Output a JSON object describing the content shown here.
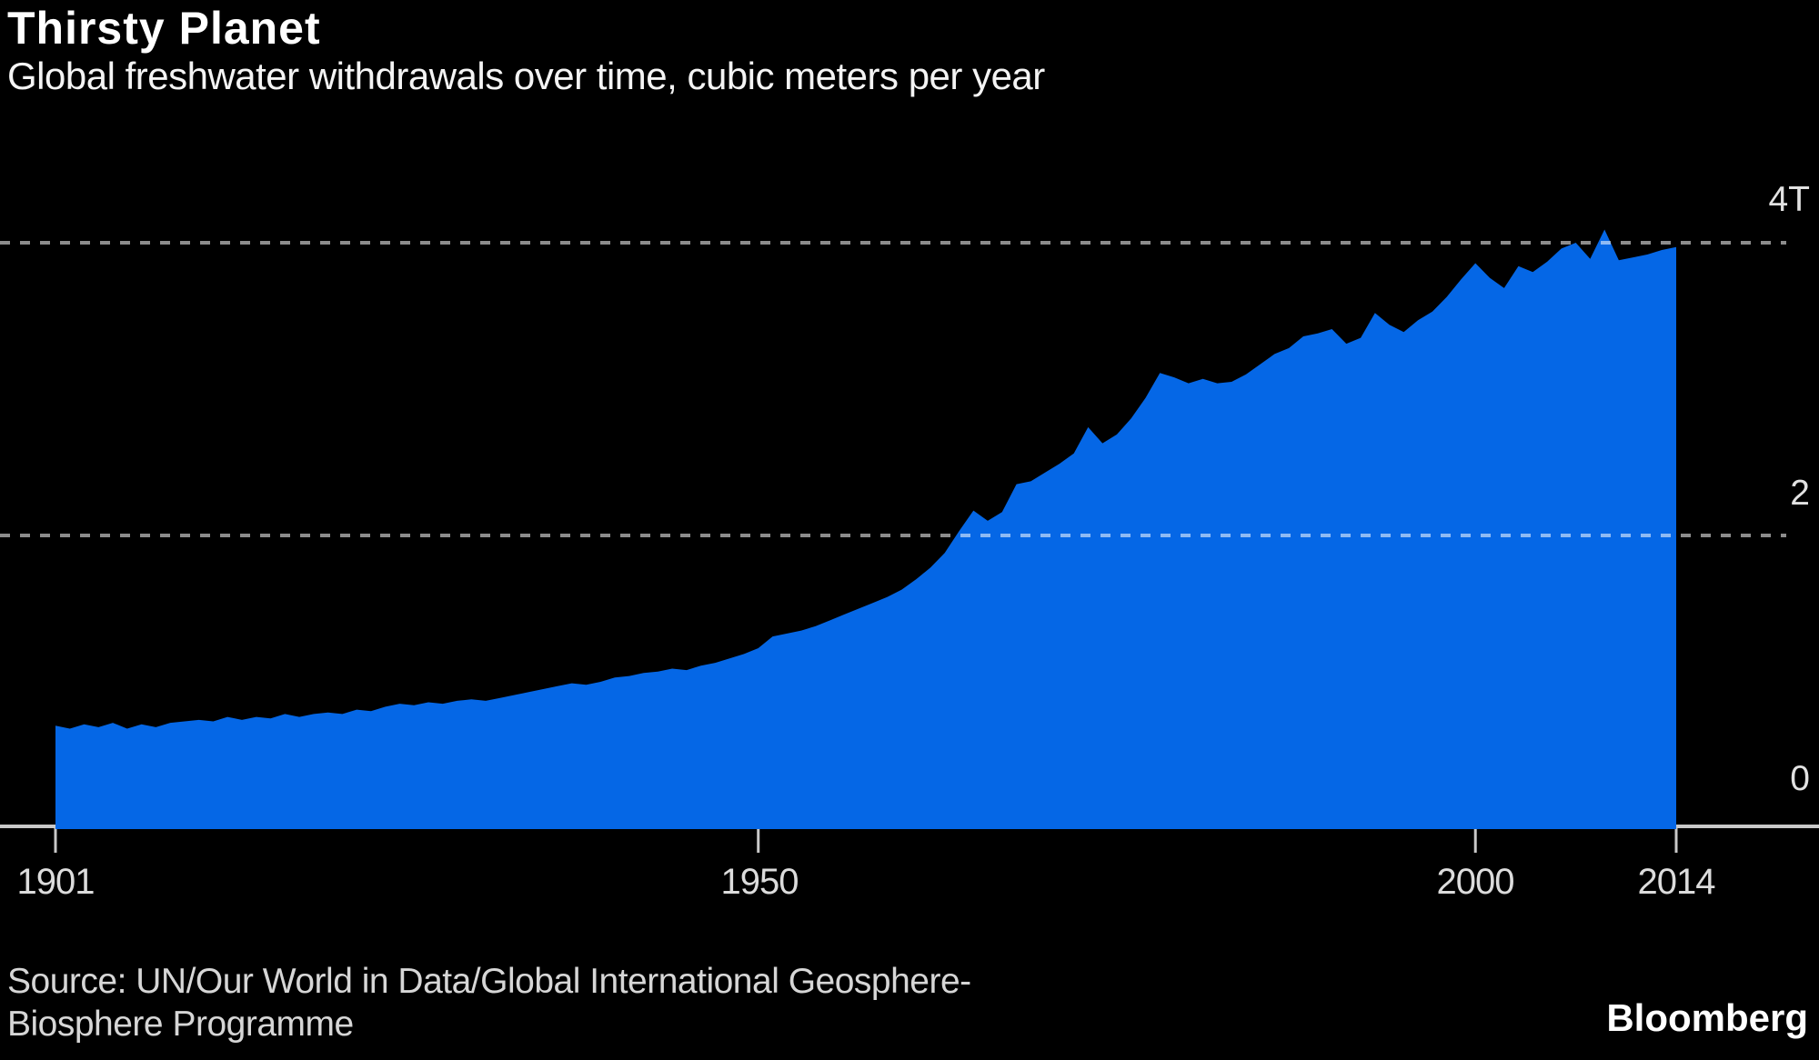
{
  "header": {
    "title": "Thirsty Planet",
    "subtitle": "Global freshwater withdrawals over time, cubic meters per year"
  },
  "footer": {
    "source_line1": "Source: UN/Our World in Data/Global International Geosphere-",
    "source_line2": "Biosphere Programme",
    "brand": "Bloomberg"
  },
  "chart_data": {
    "type": "area",
    "title": "Thirsty Planet",
    "subtitle": "Global freshwater withdrawals over time, cubic meters per year",
    "unit_note": "values in trillions (T) of cubic meters per year",
    "year_start": 1901,
    "year_end": 2014,
    "values": [
      0.7,
      0.68,
      0.71,
      0.69,
      0.72,
      0.68,
      0.71,
      0.69,
      0.72,
      0.73,
      0.74,
      0.73,
      0.76,
      0.74,
      0.76,
      0.75,
      0.78,
      0.76,
      0.78,
      0.79,
      0.78,
      0.81,
      0.8,
      0.83,
      0.85,
      0.84,
      0.86,
      0.85,
      0.87,
      0.88,
      0.87,
      0.89,
      0.91,
      0.93,
      0.95,
      0.97,
      0.99,
      0.98,
      1.0,
      1.03,
      1.04,
      1.06,
      1.07,
      1.09,
      1.08,
      1.11,
      1.13,
      1.16,
      1.19,
      1.23,
      1.31,
      1.33,
      1.35,
      1.38,
      1.42,
      1.46,
      1.5,
      1.54,
      1.58,
      1.63,
      1.7,
      1.78,
      1.88,
      2.03,
      2.17,
      2.1,
      2.16,
      2.35,
      2.37,
      2.43,
      2.49,
      2.56,
      2.74,
      2.63,
      2.69,
      2.8,
      2.94,
      3.11,
      3.08,
      3.04,
      3.07,
      3.04,
      3.05,
      3.1,
      3.17,
      3.24,
      3.28,
      3.36,
      3.38,
      3.41,
      3.31,
      3.35,
      3.52,
      3.44,
      3.39,
      3.47,
      3.53,
      3.63,
      3.75,
      3.86,
      3.76,
      3.69,
      3.84,
      3.8,
      3.87,
      3.96,
      4.0,
      3.89,
      4.09,
      3.88,
      3.9,
      3.92,
      3.95,
      3.97
    ],
    "ylim": [
      0,
      4.3
    ],
    "yticks": [
      {
        "value": 4,
        "label": "4T"
      },
      {
        "value": 2,
        "label": "2"
      },
      {
        "value": 0,
        "label": "0"
      }
    ],
    "xticks": [
      1901,
      1950,
      2000,
      2014
    ],
    "grid_values": [
      4,
      2
    ],
    "grid_style": "dotted",
    "legend": "none",
    "colors": {
      "background": "#000000",
      "area": "#0567e6",
      "grid": "rgba(255,255,255,0.55)",
      "axis": "#c9c9c9"
    }
  }
}
